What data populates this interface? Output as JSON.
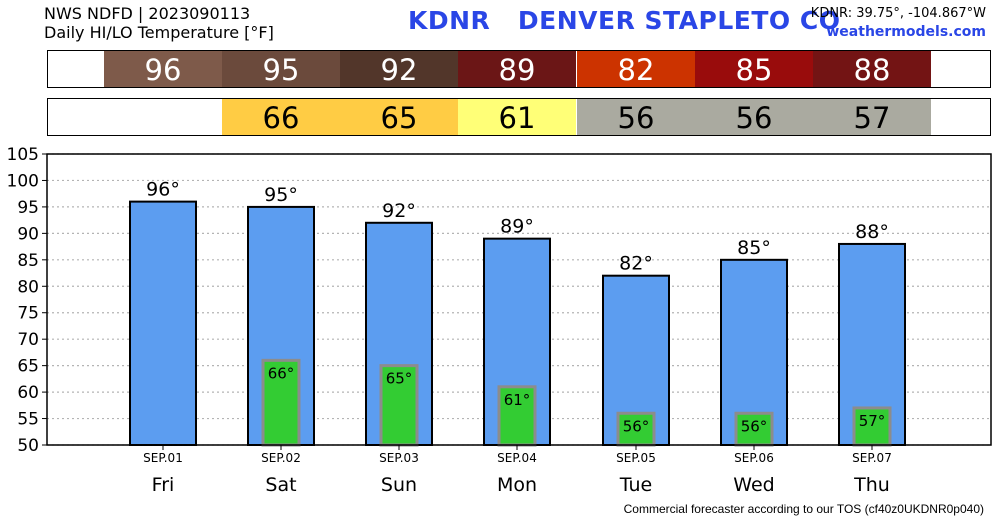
{
  "header": {
    "source_line": "NWS NDFD | 2023090113",
    "subtitle": "Daily HI/LO Temperature [°F]",
    "station_title": "KDNR   DENVER STAPLETO CO",
    "coords": "KDNR: 39.75°, -104.867°W",
    "site": "weathermodels.com"
  },
  "footer": {
    "text": "Commercial forecaster according to our TOS (cf40z0UKDNR0p040)"
  },
  "high_strip": [
    {
      "text": "96",
      "color": "#7e5a4a",
      "text_color": "#ffffff"
    },
    {
      "text": "95",
      "color": "#6b4a3c",
      "text_color": "#ffffff"
    },
    {
      "text": "92",
      "color": "#52362a",
      "text_color": "#ffffff"
    },
    {
      "text": "89",
      "color": "#6b1616",
      "text_color": "#ffffff"
    },
    {
      "text": "82",
      "color": "#cc3300",
      "text_color": "#ffffff"
    },
    {
      "text": "85",
      "color": "#990c0c",
      "text_color": "#ffffff"
    },
    {
      "text": "88",
      "color": "#731414",
      "text_color": "#ffffff"
    }
  ],
  "low_strip": [
    {
      "text": "",
      "color": "#ffffff",
      "text_color": "#000000"
    },
    {
      "text": "66",
      "color": "#ffcc44",
      "text_color": "#000000"
    },
    {
      "text": "65",
      "color": "#ffcc44",
      "text_color": "#000000"
    },
    {
      "text": "61",
      "color": "#ffff77",
      "text_color": "#000000"
    },
    {
      "text": "56",
      "color": "#aaaaa0",
      "text_color": "#000000"
    },
    {
      "text": "56",
      "color": "#aaaaa0",
      "text_color": "#000000"
    },
    {
      "text": "57",
      "color": "#aaaaa0",
      "text_color": "#000000"
    }
  ],
  "chart_data": {
    "type": "bar",
    "categories": [
      "Fri",
      "Sat",
      "Sun",
      "Mon",
      "Tue",
      "Wed",
      "Thu"
    ],
    "dates": [
      "SEP.01",
      "SEP.02",
      "SEP.03",
      "SEP.04",
      "SEP.05",
      "SEP.06",
      "SEP.07"
    ],
    "series": [
      {
        "values": [
          96,
          95,
          92,
          89,
          82,
          85,
          88
        ],
        "labels": [
          "96°",
          "95°",
          "92°",
          "89°",
          "82°",
          "85°",
          "88°"
        ],
        "color": "#5c9df0"
      },
      {
        "values": [
          null,
          66,
          65,
          61,
          56,
          56,
          57
        ],
        "labels": [
          "",
          "66°",
          "65°",
          "61°",
          "56°",
          "56°",
          "57°"
        ],
        "color": "#33cc33"
      }
    ],
    "ylim": [
      50,
      105
    ],
    "yticks": [
      50,
      55,
      60,
      65,
      70,
      75,
      80,
      85,
      90,
      95,
      100,
      105
    ],
    "grid": true
  }
}
